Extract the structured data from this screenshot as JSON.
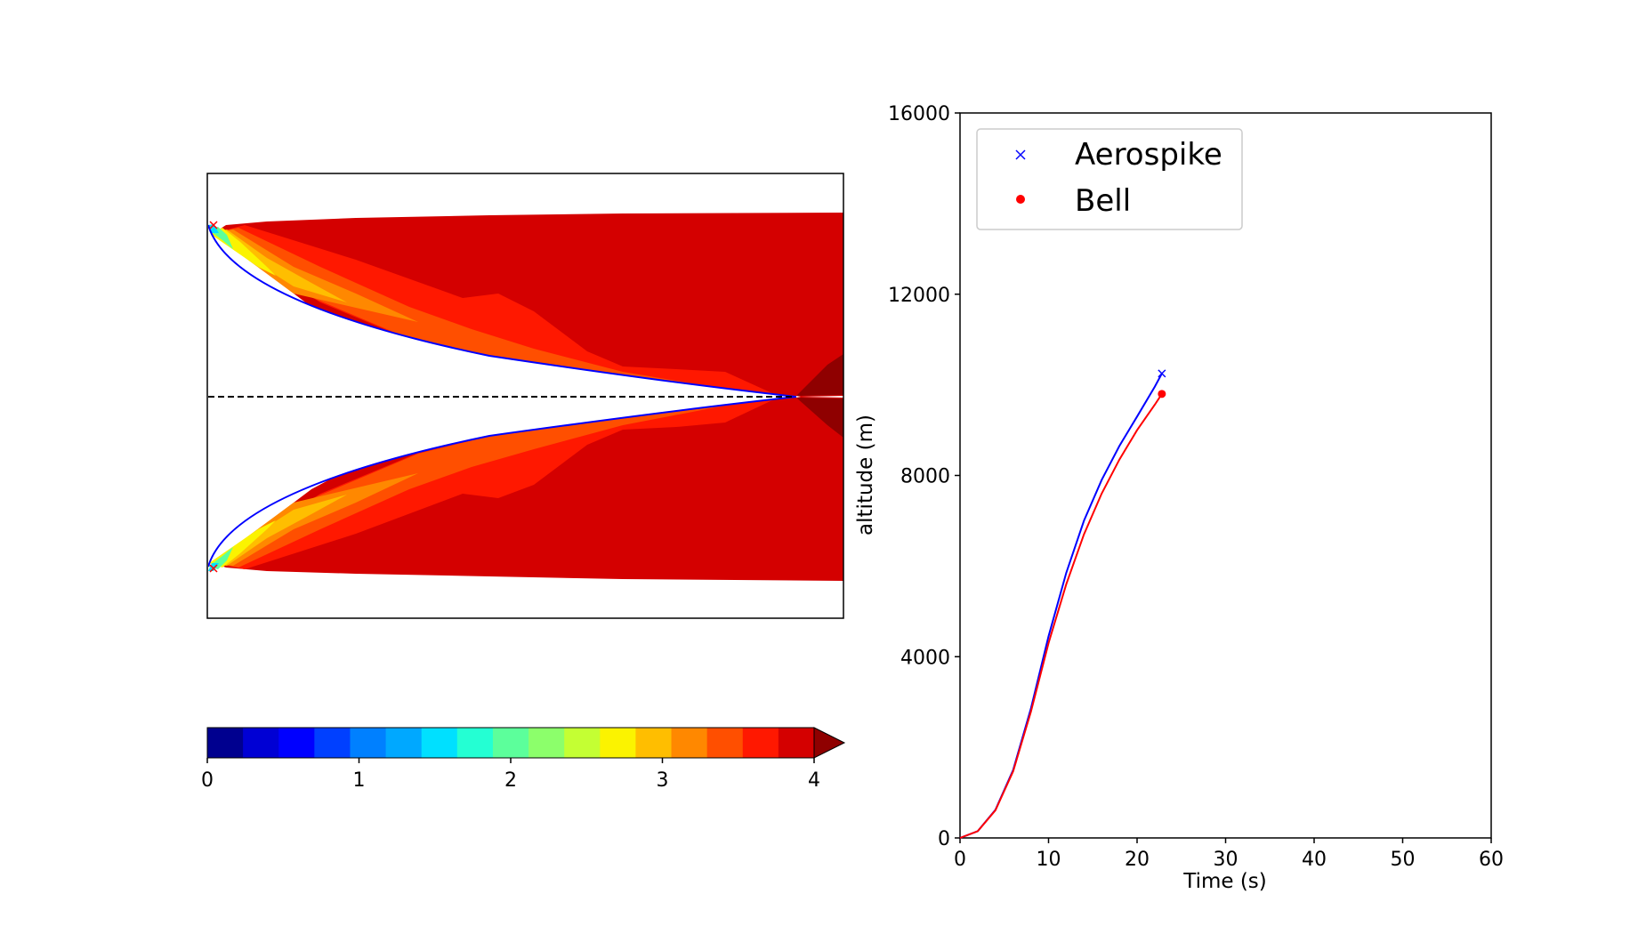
{
  "chart_data": [
    {
      "type": "heatmap",
      "title": "",
      "description_free": true,
      "colorbar": {
        "ticks": [
          0,
          1,
          2,
          3,
          4
        ],
        "tick_labels": [
          "0",
          "1",
          "2",
          "3",
          "4"
        ],
        "range": [
          0,
          4
        ],
        "levels": 17,
        "extend": "max",
        "colors": [
          "#00008f",
          "#0000d4",
          "#0000ff",
          "#0040ff",
          "#0080ff",
          "#00a8ff",
          "#00e0ff",
          "#24ffd3",
          "#5cff9b",
          "#8cff6b",
          "#c4ff33",
          "#fbf300",
          "#ffbe00",
          "#ff8800",
          "#ff4f00",
          "#ff1800",
          "#d40000",
          "#8f0000"
        ]
      },
      "points_marked": 2,
      "colors": {
        "nozzle_contour": "#0000ff",
        "centerline": "#000000",
        "throat_marker": "#ff0000"
      }
    },
    {
      "type": "line",
      "title": "",
      "xlabel": "Time (s)",
      "ylabel": "altitude (m)",
      "xlim": [
        0,
        60
      ],
      "ylim": [
        0,
        16000
      ],
      "xticks": [
        0,
        10,
        20,
        30,
        40,
        50,
        60
      ],
      "yticks": [
        0,
        4000,
        8000,
        12000,
        16000
      ],
      "grid": false,
      "legend_position": "top-left",
      "series": [
        {
          "name": "Aerospike",
          "color": "#0000ff",
          "marker": "x",
          "x": [
            0,
            2,
            4,
            6,
            8,
            10,
            12,
            14,
            16,
            18,
            20,
            22,
            22.8
          ],
          "y": [
            0,
            150,
            620,
            1500,
            2850,
            4450,
            5850,
            7000,
            7900,
            8650,
            9300,
            9960,
            10250
          ]
        },
        {
          "name": "Bell",
          "color": "#ff0000",
          "marker": "o",
          "x": [
            0,
            2,
            4,
            6,
            8,
            10,
            12,
            14,
            16,
            18,
            20,
            22,
            22.8
          ],
          "y": [
            0,
            150,
            610,
            1470,
            2780,
            4300,
            5600,
            6700,
            7600,
            8350,
            9000,
            9560,
            9800
          ]
        }
      ]
    }
  ]
}
